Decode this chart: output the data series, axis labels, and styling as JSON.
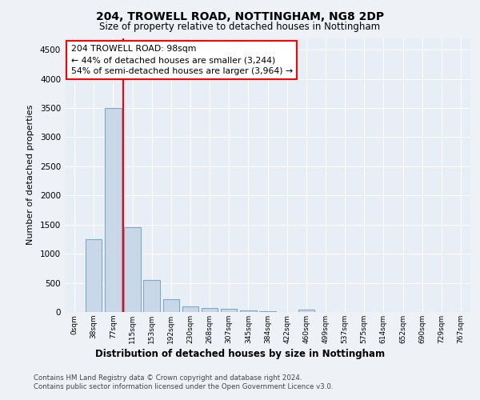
{
  "title1": "204, TROWELL ROAD, NOTTINGHAM, NG8 2DP",
  "title2": "Size of property relative to detached houses in Nottingham",
  "xlabel": "Distribution of detached houses by size in Nottingham",
  "ylabel": "Number of detached properties",
  "bin_labels": [
    "0sqm",
    "38sqm",
    "77sqm",
    "115sqm",
    "153sqm",
    "192sqm",
    "230sqm",
    "268sqm",
    "307sqm",
    "345sqm",
    "384sqm",
    "422sqm",
    "460sqm",
    "499sqm",
    "537sqm",
    "575sqm",
    "614sqm",
    "652sqm",
    "690sqm",
    "729sqm",
    "767sqm"
  ],
  "bar_heights": [
    5,
    1250,
    3500,
    1450,
    550,
    220,
    100,
    70,
    50,
    30,
    20,
    5,
    40,
    0,
    0,
    0,
    0,
    0,
    0,
    0,
    0
  ],
  "bar_color": "#c8d8e8",
  "bar_edge_color": "#7fa8c8",
  "bar_edge_width": 0.8,
  "red_line_x": 2.54,
  "annotation_text": "204 TROWELL ROAD: 98sqm\n← 44% of detached houses are smaller (3,244)\n54% of semi-detached houses are larger (3,964) →",
  "ylim": [
    0,
    4700
  ],
  "yticks": [
    0,
    500,
    1000,
    1500,
    2000,
    2500,
    3000,
    3500,
    4000,
    4500
  ],
  "background_color": "#eef2f7",
  "plot_bg_color": "#e8eef5",
  "footer1": "Contains HM Land Registry data © Crown copyright and database right 2024.",
  "footer2": "Contains public sector information licensed under the Open Government Licence v3.0."
}
